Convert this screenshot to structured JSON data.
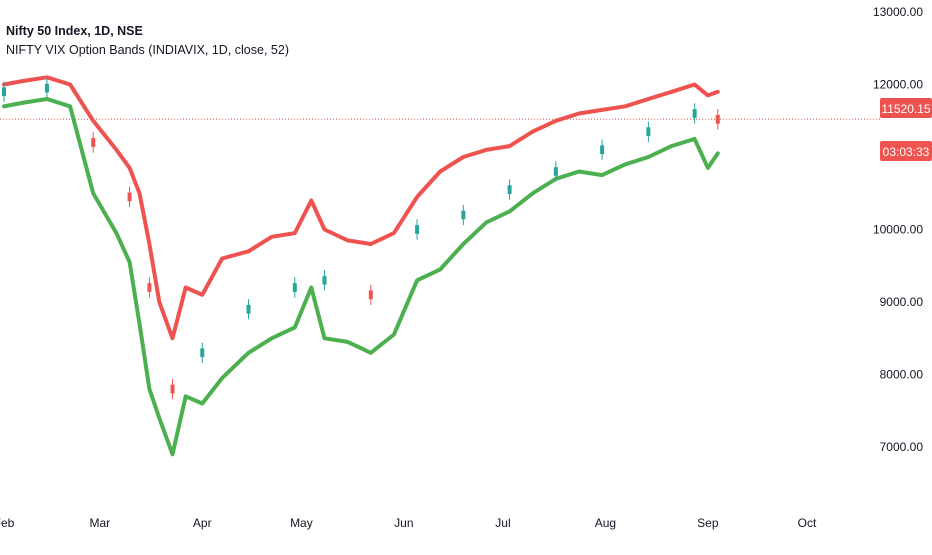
{
  "legend": {
    "title": "Nifty 50 Index, 1D, NSE",
    "indicator": "NIFTY VIX Option Bands (INDIAVIX, 1D, close, 52)"
  },
  "price_badge": {
    "value": "11520.15",
    "countdown": "03:03:33"
  },
  "colors": {
    "upper_band": "#ef5350",
    "lower_band": "#4caf50",
    "candle_up": "#26a69a",
    "candle_down": "#ef5350",
    "badge": "#ef5350",
    "price_line": "#ef5350",
    "text": "#131722"
  },
  "chart_data": {
    "type": "line",
    "title": "Nifty 50 Index, 1D, NSE",
    "xlabel": "",
    "ylabel": "",
    "x_ticks": [
      "Feb",
      "Mar",
      "Apr",
      "May",
      "Jun",
      "Jul",
      "Aug",
      "Sep",
      "Oct"
    ],
    "y_ticks": [
      "13000.00",
      "12000.00",
      "10000.00",
      "9000.00",
      "8000.00",
      "7000.00"
    ],
    "ylim": [
      6500,
      13300
    ],
    "current_price": 11520.15,
    "grid": false,
    "series": [
      {
        "name": "upper band",
        "dates": [
          "Feb 01",
          "Feb 07",
          "Feb 14",
          "Feb 21",
          "Feb 28",
          "Mar 06",
          "Mar 10",
          "Mar 13",
          "Mar 16",
          "Mar 19",
          "Mar 23",
          "Mar 27",
          "Apr 01",
          "Apr 07",
          "Apr 15",
          "Apr 22",
          "Apr 29",
          "May 04",
          "May 08",
          "May 15",
          "May 22",
          "May 29",
          "Jun 05",
          "Jun 12",
          "Jun 19",
          "Jun 26",
          "Jul 03",
          "Jul 10",
          "Jul 17",
          "Jul 24",
          "Jul 31",
          "Aug 07",
          "Aug 14",
          "Aug 21",
          "Aug 28",
          "Sep 01",
          "Sep 04"
        ],
        "values": [
          12000,
          12050,
          12100,
          12000,
          11500,
          11100,
          10850,
          10500,
          9800,
          9000,
          8500,
          9200,
          9100,
          9600,
          9700,
          9900,
          9950,
          10400,
          10000,
          9850,
          9800,
          9950,
          10450,
          10800,
          11000,
          11100,
          11150,
          11350,
          11500,
          11600,
          11650,
          11700,
          11800,
          11900,
          12000,
          11850,
          11900
        ]
      },
      {
        "name": "lower band",
        "dates": [
          "Feb 01",
          "Feb 07",
          "Feb 14",
          "Feb 21",
          "Feb 28",
          "Mar 06",
          "Mar 10",
          "Mar 13",
          "Mar 16",
          "Mar 19",
          "Mar 23",
          "Mar 27",
          "Apr 01",
          "Apr 07",
          "Apr 15",
          "Apr 22",
          "Apr 29",
          "May 04",
          "May 08",
          "May 15",
          "May 22",
          "May 29",
          "Jun 05",
          "Jun 12",
          "Jun 19",
          "Jun 26",
          "Jul 03",
          "Jul 10",
          "Jul 17",
          "Jul 24",
          "Jul 31",
          "Aug 07",
          "Aug 14",
          "Aug 21",
          "Aug 28",
          "Sep 01",
          "Sep 04"
        ],
        "values": [
          11700,
          11750,
          11800,
          11700,
          10500,
          9950,
          9550,
          8700,
          7800,
          7400,
          6900,
          7700,
          7600,
          7950,
          8300,
          8500,
          8650,
          9200,
          8500,
          8450,
          8300,
          8550,
          9300,
          9450,
          9800,
          10100,
          10250,
          10500,
          10700,
          10800,
          10750,
          10900,
          11000,
          11150,
          11250,
          10850,
          11050
        ]
      },
      {
        "name": "candles",
        "dates": [
          "Feb 01",
          "Feb 14",
          "Feb 28",
          "Mar 10",
          "Mar 16",
          "Mar 23",
          "Apr 01",
          "Apr 15",
          "Apr 29",
          "May 08",
          "May 22",
          "Jun 05",
          "Jun 19",
          "Jul 03",
          "Jul 17",
          "Jul 31",
          "Aug 14",
          "Aug 28",
          "Sep 04"
        ],
        "values": [
          11900,
          11950,
          11200,
          10450,
          9200,
          7800,
          8300,
          8900,
          9200,
          9300,
          9100,
          10000,
          10200,
          10550,
          10800,
          11100,
          11350,
          11600,
          11520
        ]
      }
    ]
  }
}
